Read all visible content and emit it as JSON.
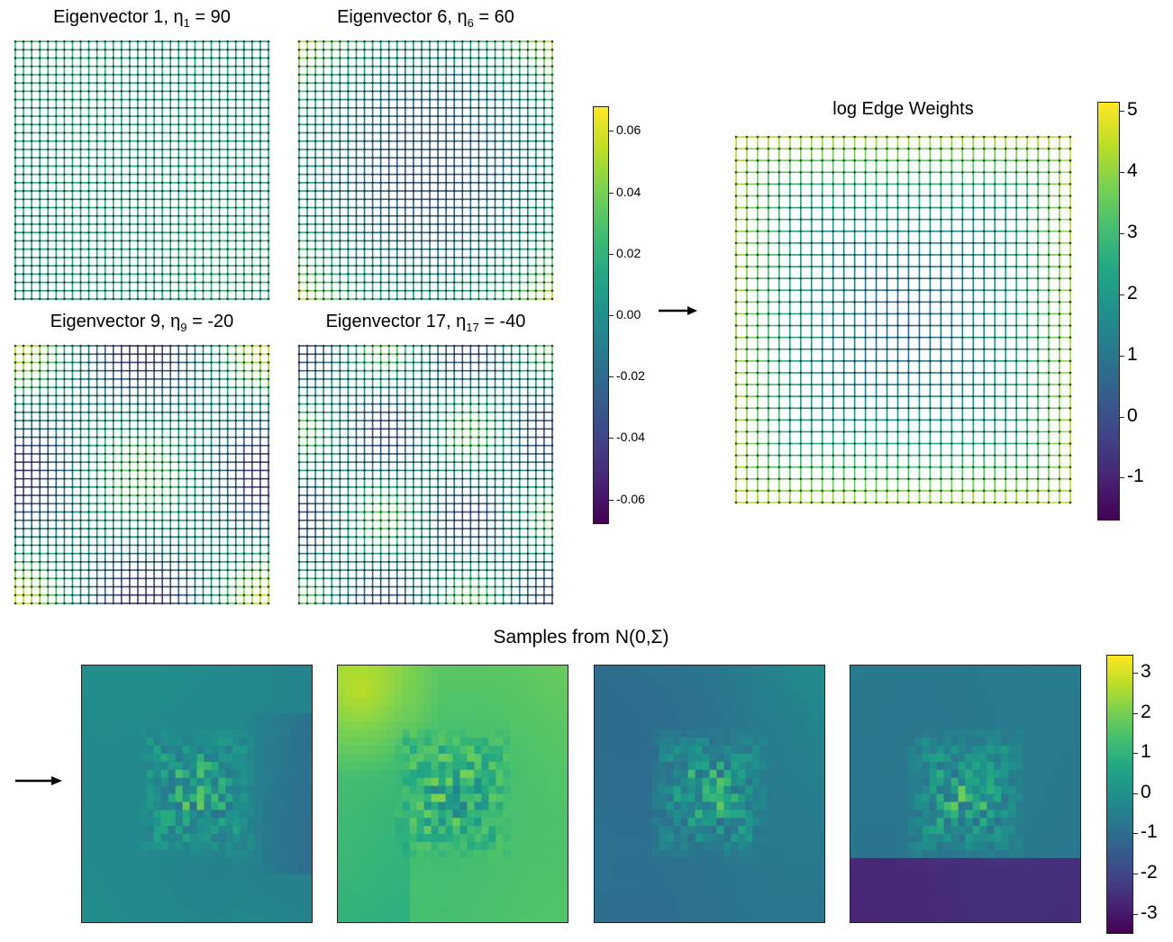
{
  "chart_data": [
    {
      "type": "heatmap",
      "kind": "graph-grid",
      "id": "ev1",
      "title_prefix": "Eigenvector 1, ",
      "eta_symbol": "η",
      "eta_sub": "1",
      "eta_eq": " = 90",
      "pattern": "ev1"
    },
    {
      "type": "heatmap",
      "kind": "graph-grid",
      "id": "ev6",
      "title_prefix": "Eigenvector 6, ",
      "eta_symbol": "η",
      "eta_sub": "6",
      "eta_eq": " = 60",
      "pattern": "ev6"
    },
    {
      "type": "heatmap",
      "kind": "graph-grid",
      "id": "ev9",
      "title_prefix": "Eigenvector 9, ",
      "eta_symbol": "η",
      "eta_sub": "9",
      "eta_eq": " = -20",
      "pattern": "ev9"
    },
    {
      "type": "heatmap",
      "kind": "graph-grid",
      "id": "ev17",
      "title_prefix": "Eigenvector 17, ",
      "eta_symbol": "η",
      "eta_sub": "17",
      "eta_eq": " = -40",
      "pattern": "ev17"
    },
    {
      "type": "heatmap",
      "kind": "colorbar",
      "id": "eigen-colorbar",
      "range": [
        -0.068,
        0.068
      ],
      "ticks": [
        "0.06",
        "0.04",
        "0.02",
        "0.00",
        "-0.02",
        "-0.04",
        "-0.06"
      ],
      "tick_values": [
        0.06,
        0.04,
        0.02,
        0.0,
        -0.02,
        -0.04,
        -0.06
      ]
    },
    {
      "type": "heatmap",
      "kind": "graph-grid",
      "id": "log-edge-weights",
      "title": "log Edge Weights",
      "pattern": "edge"
    },
    {
      "type": "heatmap",
      "kind": "colorbar",
      "id": "edge-colorbar",
      "range": [
        -1.7,
        5.15
      ],
      "ticks": [
        "5",
        "4",
        "3",
        "2",
        "1",
        "0",
        "-1"
      ],
      "tick_values": [
        5,
        4,
        3,
        2,
        1,
        0,
        -1
      ]
    },
    {
      "type": "heatmap",
      "kind": "samples",
      "id": "samples",
      "title_prefix": "Samples from N(0,",
      "title_sigma": "Σ",
      "title_suffix": ")",
      "grid_size": 32,
      "samples": [
        "s1",
        "s2",
        "s3",
        "s4"
      ]
    },
    {
      "type": "heatmap",
      "kind": "colorbar",
      "id": "samples-colorbar",
      "range": [
        -3.5,
        3.45
      ],
      "ticks": [
        "3",
        "2",
        "1",
        "0",
        "-1",
        "-2",
        "-3"
      ],
      "tick_values": [
        3,
        2,
        1,
        0,
        -1,
        -2,
        -3
      ]
    }
  ],
  "colormap": "viridis",
  "arrow_symbol": "→"
}
